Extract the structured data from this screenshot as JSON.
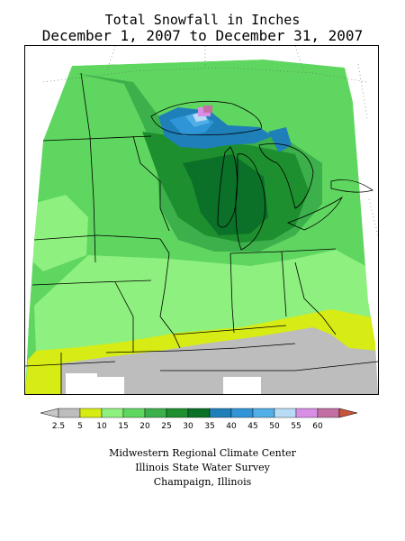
{
  "title": "Total Snowfall in Inches",
  "subtitle": "December 1, 2007 to December 31, 2007",
  "legend": {
    "min_arrow_color": "#c8c8c8",
    "max_arrow_color": "#c8553a",
    "bins": [
      {
        "label": "2.5",
        "color": "#bdbdbd"
      },
      {
        "label": "5",
        "color": "#d7ec14"
      },
      {
        "label": "10",
        "color": "#8ef07e"
      },
      {
        "label": "15",
        "color": "#5fd65f"
      },
      {
        "label": "20",
        "color": "#3bb04b"
      },
      {
        "label": "25",
        "color": "#1d8f2e"
      },
      {
        "label": "30",
        "color": "#0b7028"
      },
      {
        "label": "35",
        "color": "#1f7fb8"
      },
      {
        "label": "40",
        "color": "#2f95d6"
      },
      {
        "label": "45",
        "color": "#52aee6"
      },
      {
        "label": "50",
        "color": "#b8dcf6"
      },
      {
        "label": "55",
        "color": "#d98ee6"
      },
      {
        "label": "60",
        "color": "#c46fa4"
      }
    ]
  },
  "credits": {
    "line1": "Midwestern Regional Climate Center",
    "line2": "Illinois State Water Survey",
    "line3": "Champaign, Illinois"
  }
}
